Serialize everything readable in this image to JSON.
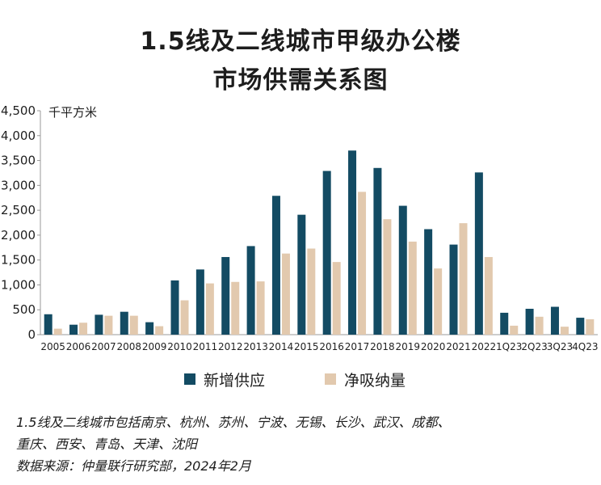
{
  "title_line1": "1.5线及二线城市甲级办公楼",
  "title_line2": "市场供需关系图",
  "footnotes": [
    "1.5线及二线城市包括南京、杭州、苏州、宁波、无锡、长沙、武汉、成都、",
    "重庆、西安、青岛、天津、沈阳",
    "数据来源：仲量联行研究部，2024年2月"
  ],
  "colors": {
    "supply": "#134b63",
    "absorption": "#e2c9ae",
    "axis": "#999999"
  },
  "chart_data": {
    "type": "bar",
    "ylabel": "千平方米",
    "ylim": [
      0,
      4500
    ],
    "yticks": [
      "0",
      "500",
      "1,000",
      "1,500",
      "2,000",
      "2,500",
      "3,000",
      "3,500",
      "4,000",
      "4,500"
    ],
    "categories": [
      "2005",
      "2006",
      "2007",
      "2008",
      "2009",
      "2010",
      "2011",
      "2012",
      "2013",
      "2014",
      "2015",
      "2016",
      "2017",
      "2018",
      "2019",
      "2020",
      "2021",
      "2022",
      "1Q23",
      "2Q23",
      "3Q23",
      "4Q23"
    ],
    "series": [
      {
        "name": "新增供应",
        "values": [
          410,
          200,
          400,
          460,
          250,
          1090,
          1310,
          1560,
          1780,
          2790,
          2410,
          3290,
          3700,
          3350,
          2590,
          2120,
          1810,
          3260,
          440,
          520,
          560,
          340
        ]
      },
      {
        "name": "净吸纳量",
        "values": [
          120,
          240,
          380,
          380,
          170,
          690,
          1030,
          1060,
          1070,
          1630,
          1730,
          1460,
          2870,
          2320,
          1870,
          1330,
          2240,
          1560,
          180,
          360,
          160,
          310
        ]
      }
    ],
    "legend_position": "bottom-center",
    "grid": false
  }
}
